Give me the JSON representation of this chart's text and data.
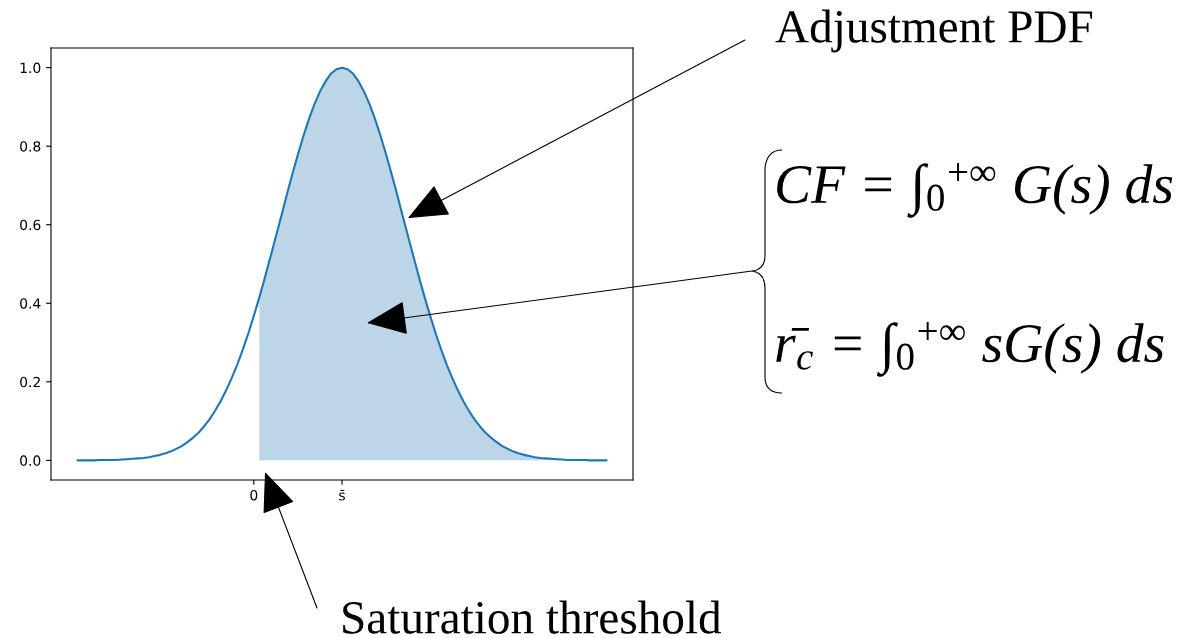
{
  "chart_data": {
    "type": "line",
    "categories": [
      null,
      null,
      null,
      null,
      null,
      null,
      null,
      null,
      null,
      null,
      null,
      null,
      null,
      null,
      null,
      null,
      null,
      null,
      null,
      null,
      null,
      null,
      null,
      null,
      null,
      null,
      null,
      null,
      null,
      null,
      null,
      null,
      "0",
      null,
      null,
      null,
      null,
      null,
      null,
      null,
      null,
      null,
      null,
      null,
      null,
      null,
      null,
      null,
      "s̄",
      null,
      null,
      null,
      null,
      null,
      null,
      null,
      null,
      null,
      null,
      null,
      null,
      null,
      null,
      null,
      null,
      null,
      null,
      null,
      null,
      null,
      null,
      null,
      null,
      null,
      null,
      null,
      null,
      null,
      null,
      null,
      null,
      null,
      null,
      null,
      null,
      null,
      null,
      null,
      null,
      null,
      null,
      null,
      null,
      null,
      null,
      null,
      null
    ],
    "series": [
      {
        "type": "area",
        "color": "#bcd6e8",
        "values": [
          null,
          null,
          null,
          null,
          null,
          null,
          null,
          null,
          null,
          null,
          null,
          null,
          null,
          null,
          null,
          null,
          null,
          null,
          null,
          null,
          null,
          null,
          null,
          null,
          null,
          null,
          null,
          null,
          null,
          null,
          null,
          null,
          null,
          0.415,
          0.465,
          0.517,
          0.57,
          0.623,
          0.677,
          0.729,
          0.779,
          0.826,
          0.869,
          0.907,
          0.939,
          0.965,
          0.985,
          0.996,
          1,
          0.996,
          0.985,
          0.965,
          0.939,
          0.907,
          0.869,
          0.826,
          0.779,
          0.729,
          0.677,
          0.623,
          0.57,
          0.517,
          0.465,
          0.415,
          0.368,
          0.323,
          0.282,
          0.244,
          0.21,
          0.179,
          0.151,
          0.127,
          0.105,
          0.087,
          0.071,
          0.058,
          0.047,
          0.037,
          0.03,
          0.023,
          0.018,
          0.014,
          0.011,
          0.008,
          0.006,
          0.005,
          0.004,
          0.003,
          0.002,
          0.001,
          0.001,
          0.001,
          0.001,
          0,
          0,
          0,
          0
        ]
      },
      {
        "color": "#1f77b4",
        "values": [
          0,
          0,
          0,
          0,
          0.001,
          0.001,
          0.001,
          0.001,
          0.002,
          0.003,
          0.004,
          0.005,
          0.006,
          0.008,
          0.011,
          0.014,
          0.018,
          0.023,
          0.03,
          0.037,
          0.047,
          0.058,
          0.071,
          0.087,
          0.105,
          0.127,
          0.151,
          0.179,
          0.21,
          0.244,
          0.282,
          0.323,
          0.368,
          0.415,
          0.465,
          0.517,
          0.57,
          0.623,
          0.677,
          0.729,
          0.779,
          0.826,
          0.869,
          0.907,
          0.939,
          0.965,
          0.985,
          0.996,
          1,
          0.996,
          0.985,
          0.965,
          0.939,
          0.907,
          0.869,
          0.826,
          0.779,
          0.729,
          0.677,
          0.623,
          0.57,
          0.517,
          0.465,
          0.415,
          0.368,
          0.323,
          0.282,
          0.244,
          0.21,
          0.179,
          0.151,
          0.127,
          0.105,
          0.087,
          0.071,
          0.058,
          0.047,
          0.037,
          0.03,
          0.023,
          0.018,
          0.014,
          0.011,
          0.008,
          0.006,
          0.005,
          0.004,
          0.003,
          0.002,
          0.001,
          0.001,
          0.001,
          0.001,
          0,
          0,
          0,
          0
        ]
      }
    ],
    "ylim": [
      -0.05,
      1.05
    ],
    "yticks": [
      {
        "value": 0,
        "label": "0.0"
      },
      0.2,
      0.4,
      0.6,
      0.8,
      {
        "value": 1,
        "label": "1.0"
      }
    ],
    "annotations": [
      "Adjustment PDF",
      "CF = ∫$_{0}$$^{+∞}$ G(s) ds\nr̄$_{c}$ = ∫$_{0}$$^{+∞}$ sG(s) ds",
      "Saturation threshold"
    ]
  }
}
